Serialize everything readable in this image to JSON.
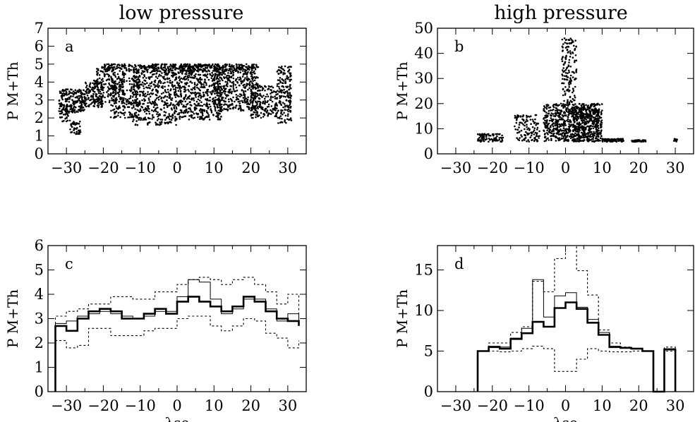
{
  "column_titles": [
    "low pressure",
    "high pressure"
  ],
  "chart_data": [
    {
      "id": "a",
      "type": "scatter",
      "panel_letter": "a",
      "column": "low pressure",
      "ylabel": "P M+Th",
      "xlabel": "",
      "xlim": [
        -35,
        35
      ],
      "ylim": [
        0,
        7
      ],
      "xticks": [
        -30,
        -20,
        -10,
        0,
        10,
        20,
        30
      ],
      "yticks": [
        0,
        1,
        2,
        3,
        4,
        5,
        6,
        7
      ],
      "clusters": [
        {
          "x": [
            -32,
            -29
          ],
          "y": [
            1.8,
            3.6
          ],
          "n": 120
        },
        {
          "x": [
            -29,
            -25
          ],
          "y": [
            2.3,
            3.6
          ],
          "n": 120
        },
        {
          "x": [
            -29,
            -26
          ],
          "y": [
            1.1,
            1.8
          ],
          "n": 40
        },
        {
          "x": [
            -25,
            -20
          ],
          "y": [
            2.6,
            4.1
          ],
          "n": 140
        },
        {
          "x": [
            -22,
            -14
          ],
          "y": [
            2.8,
            4.9
          ],
          "n": 200
        },
        {
          "x": [
            -18,
            -10
          ],
          "y": [
            2.0,
            4.3
          ],
          "n": 200
        },
        {
          "x": [
            -12,
            0
          ],
          "y": [
            1.6,
            5.0
          ],
          "n": 500
        },
        {
          "x": [
            0,
            12
          ],
          "y": [
            1.9,
            5.0
          ],
          "n": 550
        },
        {
          "x": [
            10,
            22
          ],
          "y": [
            2.4,
            5.0
          ],
          "n": 450
        },
        {
          "x": [
            -20,
            22
          ],
          "y": [
            4.6,
            5.0
          ],
          "n": 300
        },
        {
          "x": [
            20,
            27
          ],
          "y": [
            2.0,
            3.8
          ],
          "n": 180
        },
        {
          "x": [
            27,
            31
          ],
          "y": [
            1.7,
            4.9
          ],
          "n": 180
        }
      ]
    },
    {
      "id": "b",
      "type": "scatter",
      "panel_letter": "b",
      "column": "high pressure",
      "ylabel": "P M+Th",
      "xlabel": "",
      "xlim": [
        -35,
        35
      ],
      "ylim": [
        0,
        50
      ],
      "xticks": [
        -30,
        -20,
        -10,
        0,
        10,
        20,
        30
      ],
      "yticks": [
        0,
        10,
        20,
        30,
        40,
        50
      ],
      "clusters": [
        {
          "x": [
            -24,
            -17
          ],
          "y": [
            4.8,
            8.0
          ],
          "n": 90
        },
        {
          "x": [
            -14,
            -7
          ],
          "y": [
            4.8,
            15.5
          ],
          "n": 120
        },
        {
          "x": [
            -6,
            10
          ],
          "y": [
            4.8,
            20
          ],
          "n": 700
        },
        {
          "x": [
            -1,
            3
          ],
          "y": [
            15,
            46
          ],
          "n": 180
        },
        {
          "x": [
            2,
            9
          ],
          "y": [
            4.8,
            20
          ],
          "n": 250
        },
        {
          "x": [
            10,
            16
          ],
          "y": [
            4.8,
            6.0
          ],
          "n": 80
        },
        {
          "x": [
            18,
            22
          ],
          "y": [
            4.8,
            5.5
          ],
          "n": 40
        },
        {
          "x": [
            29.5,
            30.5
          ],
          "y": [
            4.8,
            6.0
          ],
          "n": 10
        }
      ]
    },
    {
      "id": "c",
      "type": "histogram",
      "panel_letter": "c",
      "column": "low pressure",
      "ylabel": "P M+Th",
      "xlabel": "λse",
      "xlim": [
        -35,
        35
      ],
      "ylim": [
        0,
        6
      ],
      "xticks": [
        -30,
        -20,
        -10,
        0,
        10,
        20,
        30
      ],
      "yticks": [
        0,
        1,
        2,
        3,
        4,
        5,
        6
      ],
      "bin_edges": [
        -33,
        -30,
        -27,
        -24,
        -21,
        -18,
        -15,
        -12,
        -9,
        -6,
        -3,
        0,
        3,
        6,
        9,
        12,
        15,
        18,
        21,
        24,
        27,
        30,
        33
      ],
      "series": [
        {
          "style": "thick",
          "values": [
            2.7,
            2.5,
            3.0,
            3.3,
            3.4,
            3.3,
            3.0,
            3.0,
            3.2,
            3.4,
            3.2,
            3.7,
            3.9,
            3.7,
            3.5,
            3.3,
            3.5,
            3.9,
            3.7,
            3.3,
            3.0,
            2.9,
            2.7
          ]
        },
        {
          "style": "thin",
          "values": [
            2.8,
            2.9,
            3.1,
            3.2,
            3.3,
            3.2,
            3.1,
            3.0,
            3.1,
            3.3,
            3.3,
            3.9,
            4.6,
            4.5,
            3.8,
            3.2,
            3.4,
            3.8,
            3.8,
            3.4,
            2.9,
            3.2,
            2.8
          ]
        },
        {
          "style": "dotted",
          "values": [
            3.1,
            3.3,
            3.4,
            3.6,
            3.6,
            3.9,
            3.9,
            3.8,
            3.8,
            4.1,
            4.1,
            4.4,
            4.6,
            4.7,
            4.6,
            4.4,
            4.6,
            4.7,
            4.4,
            4.1,
            3.6,
            4.0,
            3.0
          ]
        },
        {
          "style": "dotted",
          "values": [
            2.1,
            1.8,
            1.9,
            2.6,
            2.6,
            2.3,
            2.3,
            2.3,
            2.5,
            2.6,
            2.6,
            3.0,
            3.1,
            3.1,
            2.7,
            2.5,
            2.7,
            3.0,
            2.9,
            2.4,
            2.2,
            1.8,
            2.1
          ]
        }
      ]
    },
    {
      "id": "d",
      "type": "histogram",
      "panel_letter": "d",
      "column": "high pressure",
      "ylabel": "P M+Th",
      "xlabel": "λse",
      "xlim": [
        -35,
        35
      ],
      "ylim": [
        0,
        18
      ],
      "xticks": [
        -30,
        -20,
        -10,
        0,
        10,
        20,
        30
      ],
      "yticks": [
        0,
        5,
        10,
        15
      ],
      "bin_edges": [
        -24,
        -21,
        -18,
        -15,
        -12,
        -9,
        -6,
        -3,
        0,
        3,
        6,
        9,
        12,
        15,
        18,
        21,
        24,
        27,
        30
      ],
      "series": [
        {
          "style": "thick",
          "values": [
            5.0,
            5.5,
            5.3,
            6.5,
            7.2,
            8.6,
            8.0,
            10.3,
            11.0,
            10.2,
            8.5,
            7.0,
            5.5,
            5.4,
            5.3,
            5.0,
            0,
            5.2
          ]
        },
        {
          "style": "thin",
          "values": [
            5.0,
            5.6,
            5.5,
            6.6,
            7.8,
            13.8,
            9.2,
            11.8,
            12.2,
            10.4,
            8.9,
            7.3,
            5.6,
            5.4,
            5.3,
            5.0,
            0,
            5.3
          ]
        },
        {
          "style": "dotted",
          "values": [
            5.0,
            6.0,
            6.0,
            7.3,
            8.0,
            13.6,
            12.3,
            16.4,
            18.0,
            14.9,
            11.9,
            7.6,
            6.0,
            5.5,
            5.3,
            5.0,
            0,
            5.5
          ]
        },
        {
          "style": "dotted",
          "values": [
            5.0,
            5.0,
            4.9,
            5.0,
            5.3,
            5.6,
            5.3,
            2.5,
            2.5,
            4.0,
            5.3,
            5.0,
            4.9,
            4.9,
            5.0,
            5.0,
            0,
            5.0
          ]
        }
      ]
    }
  ]
}
